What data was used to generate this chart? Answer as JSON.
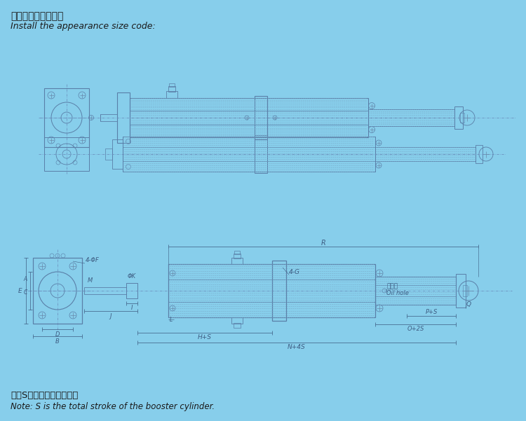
{
  "bg": "#87CEEB",
  "dc": "#5a7fa8",
  "dk": "#3d5c82",
  "cl": "#6888aa",
  "hatch_c": "#7aaac8",
  "title_cn": "安装外观尺寸代码：",
  "title_en": "Install the appearance size code:",
  "note_cn": "注：S为增压缸的总行程。",
  "note_en": "Note: S is the total stroke of the booster cylinder.",
  "figw": 7.5,
  "figh": 6.01,
  "dpi": 100
}
